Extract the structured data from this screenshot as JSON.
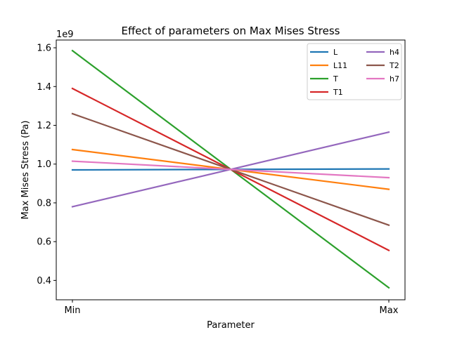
{
  "chart_data": {
    "type": "line",
    "title": "Effect of parameters on Max Mises Stress",
    "xlabel": "Parameter",
    "ylabel": "Max Mises Stress (Pa)",
    "y_offset_label": "1e9",
    "categories": [
      "Min",
      "Max"
    ],
    "x_ticks": [
      "Min",
      "Max"
    ],
    "y_ticks": [
      "0.4",
      "0.6",
      "0.8",
      "1.0",
      "1.2",
      "1.4",
      "1.6"
    ],
    "y_tick_values": [
      0.4,
      0.6,
      0.8,
      1.0,
      1.2,
      1.4,
      1.6
    ],
    "ylim": [
      0.3,
      1.64
    ],
    "grid": false,
    "legend_position": "top-right",
    "legend_columns": 2,
    "series": [
      {
        "name": "L",
        "color": "#1f77b4",
        "values": [
          0.97,
          0.975
        ]
      },
      {
        "name": "L11",
        "color": "#ff7f0e",
        "values": [
          1.075,
          0.87
        ]
      },
      {
        "name": "T",
        "color": "#2ca02c",
        "values": [
          1.585,
          0.362
        ]
      },
      {
        "name": "T1",
        "color": "#d62728",
        "values": [
          1.39,
          0.555
        ]
      },
      {
        "name": "h4",
        "color": "#9467bd",
        "values": [
          0.78,
          1.165
        ]
      },
      {
        "name": "T2",
        "color": "#8c564b",
        "values": [
          1.26,
          0.685
        ]
      },
      {
        "name": "h7",
        "color": "#e377c2",
        "values": [
          1.015,
          0.93
        ]
      }
    ]
  }
}
